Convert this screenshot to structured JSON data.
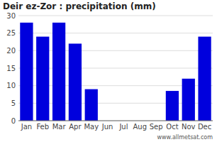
{
  "chart_data": {
    "type": "bar",
    "title": "Deir ez-Zor : precipitation (mm)",
    "categories": [
      "Jan",
      "Feb",
      "Mar",
      "Apr",
      "May",
      "Jun",
      "Jul",
      "Aug",
      "Sep",
      "Oct",
      "Nov",
      "Dec"
    ],
    "values": [
      28,
      24,
      28,
      22,
      9,
      0,
      0,
      0,
      0,
      8.5,
      12,
      24
    ],
    "color": "#0000dd",
    "ylim": [
      0,
      30
    ],
    "yticks": [
      0,
      5,
      10,
      15,
      20,
      25,
      30
    ],
    "grid": true,
    "annotations": [
      "www.allmetsat.com"
    ]
  }
}
